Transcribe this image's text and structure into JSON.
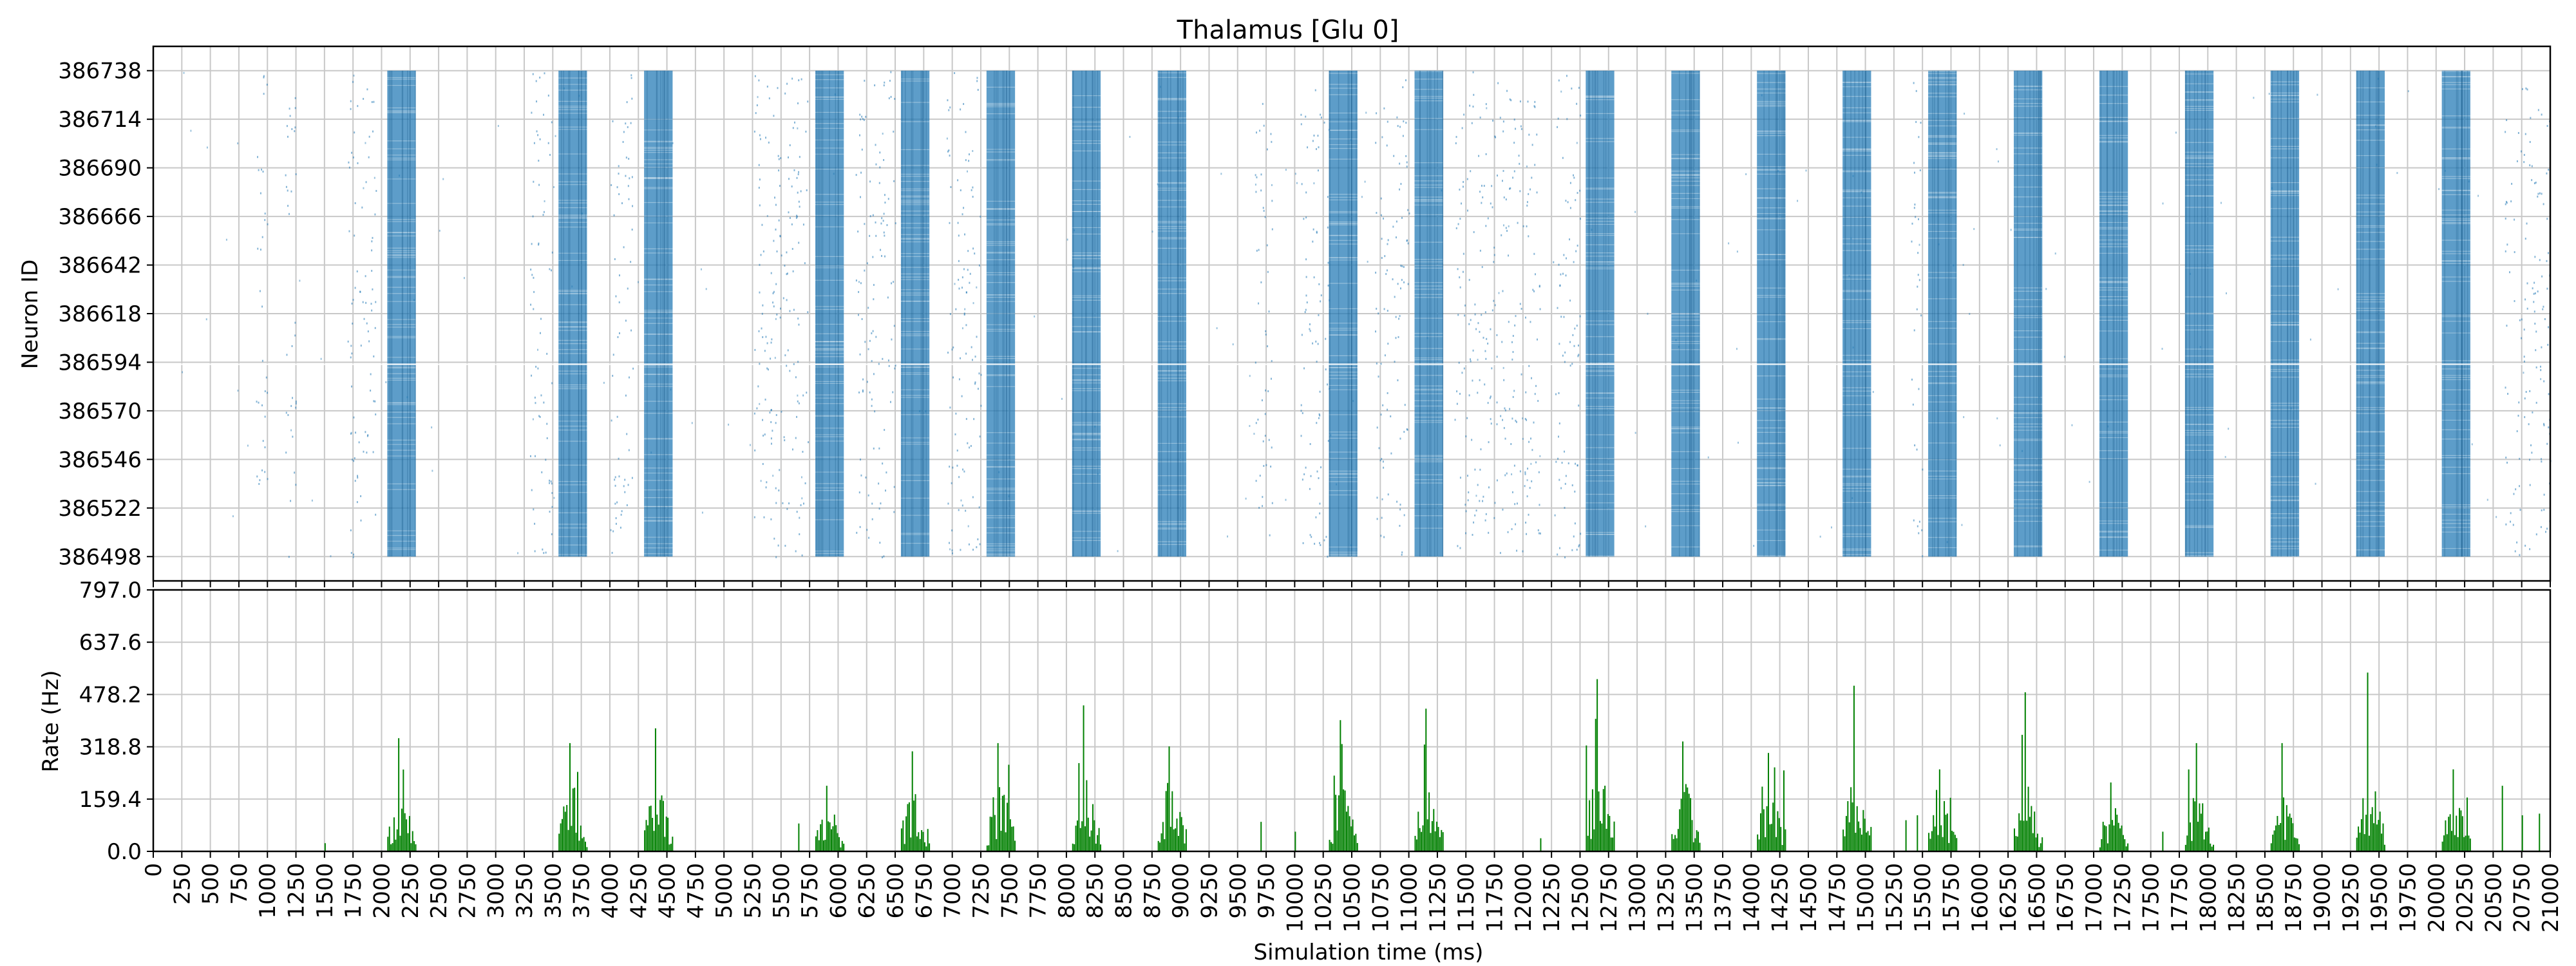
{
  "chart_data": [
    {
      "type": "scatter",
      "title": "Thalamus [Glu 0]",
      "xlabel": "",
      "ylabel": "Neuron ID",
      "xlim": [
        0,
        21000
      ],
      "ylim": [
        386486,
        386750
      ],
      "y_ticks": [
        "386498",
        "386522",
        "386546",
        "386570",
        "386594",
        "386618",
        "386642",
        "386666",
        "386690",
        "386714",
        "386738"
      ],
      "grid": true,
      "series_color": "#1f77b4",
      "neuron_id_range": [
        386498,
        386738
      ],
      "burst_windows_ms": [
        [
          2050,
          2300
        ],
        [
          3550,
          3800
        ],
        [
          4300,
          4550
        ],
        [
          5800,
          6050
        ],
        [
          6550,
          6800
        ],
        [
          7300,
          7550
        ],
        [
          8050,
          8300
        ],
        [
          8800,
          9050
        ],
        [
          10300,
          10550
        ],
        [
          11050,
          11300
        ],
        [
          12550,
          12800
        ],
        [
          13300,
          13550
        ],
        [
          14050,
          14300
        ],
        [
          14800,
          15050
        ],
        [
          15550,
          15800
        ],
        [
          16300,
          16550
        ],
        [
          17050,
          17300
        ],
        [
          17800,
          18050
        ],
        [
          18550,
          18800
        ],
        [
          19300,
          19550
        ],
        [
          20050,
          20300
        ]
      ],
      "sparse_activity_ms": [
        [
          900,
          1000
        ],
        [
          1150,
          1250
        ],
        [
          1700,
          1950
        ],
        [
          3300,
          3500
        ],
        [
          4000,
          4200
        ],
        [
          5250,
          5750
        ],
        [
          6150,
          6500
        ],
        [
          6950,
          7250
        ],
        [
          9650,
          9800
        ],
        [
          10050,
          10300
        ],
        [
          10700,
          11000
        ],
        [
          11400,
          12150
        ],
        [
          12250,
          12500
        ],
        [
          15400,
          15500
        ],
        [
          20600,
          21000
        ]
      ]
    },
    {
      "type": "bar",
      "title": "",
      "xlabel": "Simulation time (ms)",
      "ylabel": "Rate (Hz)",
      "xlim": [
        0,
        21000
      ],
      "ylim": [
        0,
        797.0
      ],
      "y_ticks": [
        "0.0",
        "159.4",
        "318.8",
        "478.2",
        "637.6",
        "797.0"
      ],
      "x_ticks": [
        "0",
        "250",
        "500",
        "750",
        "1000",
        "1250",
        "1500",
        "1750",
        "2000",
        "2250",
        "2500",
        "2750",
        "3000",
        "3250",
        "3500",
        "3750",
        "4000",
        "4250",
        "4500",
        "4750",
        "5000",
        "5250",
        "5500",
        "5750",
        "6000",
        "6250",
        "6500",
        "6750",
        "7000",
        "7250",
        "7500",
        "7750",
        "8000",
        "8250",
        "8500",
        "8750",
        "9000",
        "9250",
        "9500",
        "9750",
        "10000",
        "10250",
        "10500",
        "10750",
        "11000",
        "11250",
        "11500",
        "11750",
        "12000",
        "12250",
        "12500",
        "12750",
        "13000",
        "13250",
        "13500",
        "13750",
        "14000",
        "14250",
        "14500",
        "14750",
        "15000",
        "15250",
        "15500",
        "15750",
        "16000",
        "16250",
        "16500",
        "16750",
        "17000",
        "17250",
        "17500",
        "17750",
        "18000",
        "18250",
        "18500",
        "18750",
        "19000",
        "19250",
        "19500",
        "19750",
        "20000",
        "20250",
        "20500",
        "20750",
        "21000"
      ],
      "grid": true,
      "series_color": "#008000",
      "burst_rates_hz": [
        {
          "start": 2050,
          "end": 2300,
          "mean": 110,
          "peak": 345
        },
        {
          "start": 3550,
          "end": 3800,
          "mean": 120,
          "peak": 330
        },
        {
          "start": 4300,
          "end": 4550,
          "mean": 130,
          "peak": 375
        },
        {
          "start": 5800,
          "end": 6050,
          "mean": 85,
          "peak": 200
        },
        {
          "start": 6550,
          "end": 6800,
          "mean": 120,
          "peak": 305
        },
        {
          "start": 7300,
          "end": 7550,
          "mean": 130,
          "peak": 330
        },
        {
          "start": 8050,
          "end": 8300,
          "mean": 130,
          "peak": 445
        },
        {
          "start": 8800,
          "end": 9050,
          "mean": 140,
          "peak": 320
        },
        {
          "start": 10300,
          "end": 10550,
          "mean": 130,
          "peak": 400
        },
        {
          "start": 11050,
          "end": 11300,
          "mean": 150,
          "peak": 435
        },
        {
          "start": 12550,
          "end": 12800,
          "mean": 155,
          "peak": 525
        },
        {
          "start": 13300,
          "end": 13550,
          "mean": 130,
          "peak": 335
        },
        {
          "start": 14050,
          "end": 14300,
          "mean": 115,
          "peak": 300
        },
        {
          "start": 14800,
          "end": 15050,
          "mean": 135,
          "peak": 505
        },
        {
          "start": 15550,
          "end": 15800,
          "mean": 105,
          "peak": 250
        },
        {
          "start": 16300,
          "end": 16550,
          "mean": 120,
          "peak": 485
        },
        {
          "start": 17050,
          "end": 17300,
          "mean": 90,
          "peak": 210
        },
        {
          "start": 17800,
          "end": 18050,
          "mean": 110,
          "peak": 330
        },
        {
          "start": 18550,
          "end": 18800,
          "mean": 110,
          "peak": 330
        },
        {
          "start": 19300,
          "end": 19550,
          "mean": 155,
          "peak": 545
        },
        {
          "start": 20050,
          "end": 20300,
          "mean": 95,
          "peak": 250
        }
      ],
      "sparse_peaks_hz": [
        {
          "t": 5650,
          "v": 85
        },
        {
          "t": 9700,
          "v": 90
        },
        {
          "t": 10000,
          "v": 60
        },
        {
          "t": 15350,
          "v": 95
        },
        {
          "t": 15450,
          "v": 110
        },
        {
          "t": 17600,
          "v": 60
        },
        {
          "t": 20575,
          "v": 200
        },
        {
          "t": 20750,
          "v": 110
        },
        {
          "t": 20900,
          "v": 115
        },
        {
          "t": 12150,
          "v": 40
        },
        {
          "t": 1500,
          "v": 25
        }
      ]
    }
  ]
}
